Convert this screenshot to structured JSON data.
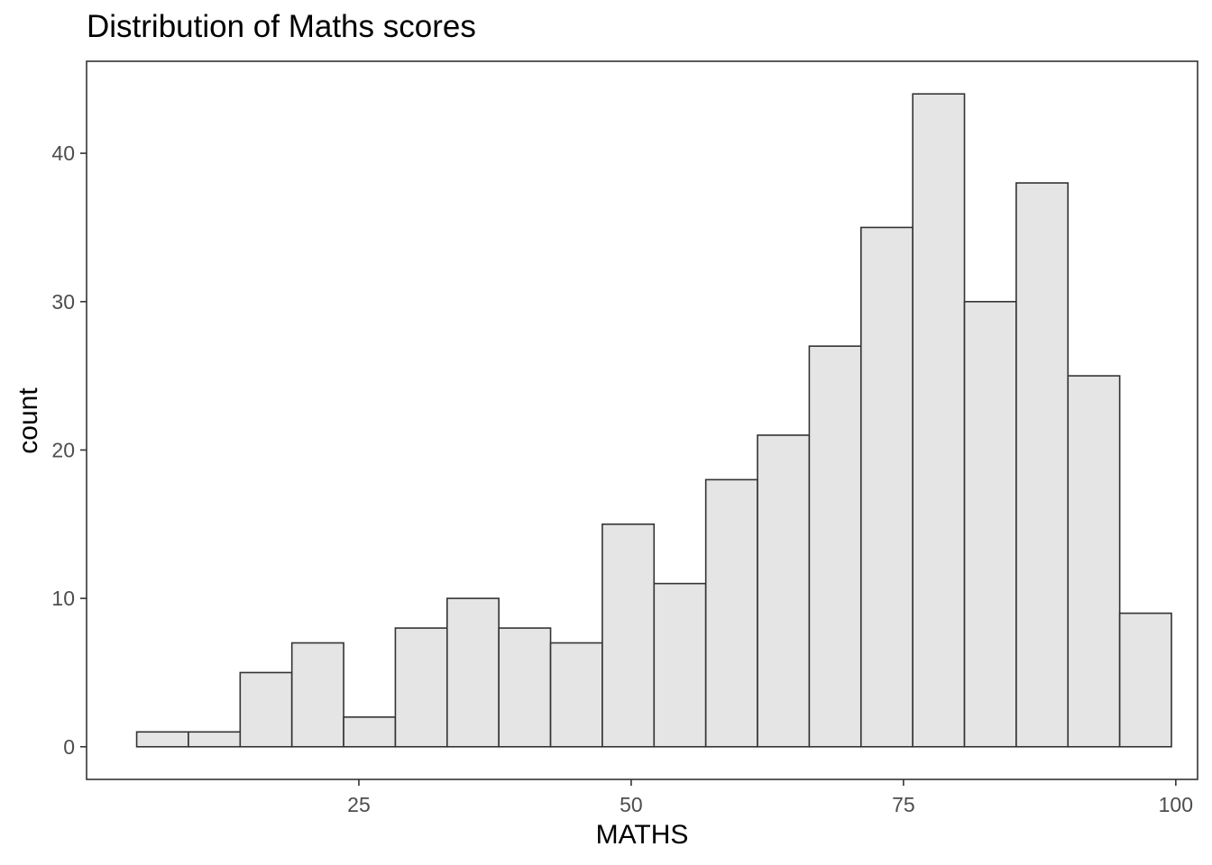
{
  "chart_data": {
    "type": "bar",
    "title": "Distribution of Maths scores",
    "xlabel": "MATHS",
    "ylabel": "count",
    "xlim": [
      0.0,
      102.0
    ],
    "ylim": [
      -2.2,
      46.2
    ],
    "x_ticks": [
      25,
      50,
      75,
      100
    ],
    "y_ticks": [
      0,
      10,
      20,
      30,
      40
    ],
    "bin_width": 4.75,
    "bin_starts": [
      4.6,
      9.35,
      14.1,
      18.85,
      23.6,
      28.35,
      33.1,
      37.85,
      42.6,
      47.35,
      52.1,
      56.85,
      61.6,
      66.35,
      71.1,
      75.85,
      80.6,
      85.35,
      90.1,
      94.85
    ],
    "values": [
      1,
      1,
      5,
      7,
      2,
      8,
      10,
      8,
      7,
      15,
      11,
      18,
      21,
      27,
      35,
      44,
      30,
      38,
      25,
      9
    ],
    "grid": false,
    "legend": "none",
    "colors": {
      "bar_fill": "#e5e5e5",
      "bar_stroke": "#333333",
      "panel_border": "#333333",
      "tick_label": "#4d4d4d",
      "background": "#ffffff"
    }
  }
}
